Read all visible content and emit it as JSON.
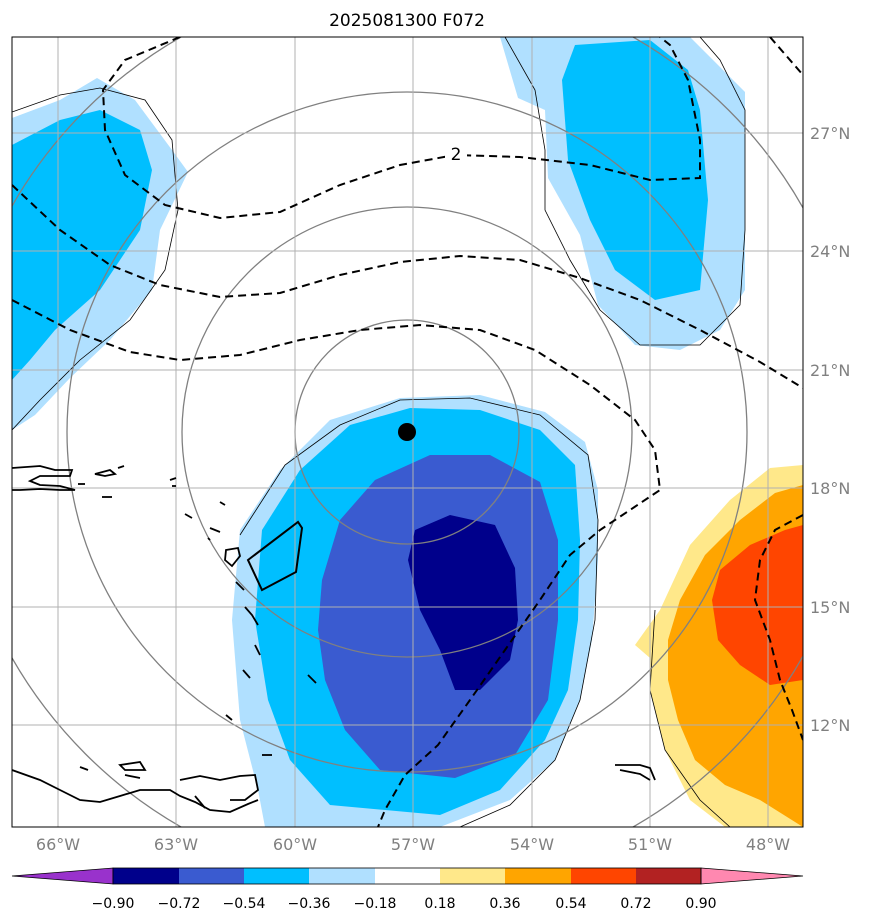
{
  "title": "2025081300 F072",
  "map": {
    "lon_ticks": [
      "66°W",
      "63°W",
      "60°W",
      "57°W",
      "54°W",
      "51°W",
      "48°W"
    ],
    "lat_ticks": [
      "27°N",
      "24°N",
      "21°N",
      "18°N",
      "15°N",
      "12°N"
    ],
    "contour_label": "2",
    "storm_marker": {
      "lon": -57.1,
      "lat": 19.4
    },
    "fill_colors": {
      "-0.90_-0.72": "#00008b",
      "-0.72_-0.54": "#3a5bd0",
      "-0.54_-0.36": "#00bfff",
      "-0.36_-0.18": "#b0e0ff",
      "0.18_0.36": "#ffe88a",
      "0.36_0.54": "#ffa500",
      "0.54_0.72": "#ff4500"
    }
  },
  "colorbar": {
    "tick_labels": [
      "−0.90",
      "−0.72",
      "−0.54",
      "−0.36",
      "−0.18",
      "0.18",
      "0.36",
      "0.54",
      "0.72",
      "0.90"
    ],
    "colors": [
      "#9932cc",
      "#00008b",
      "#3a5bd0",
      "#00bfff",
      "#b0e0ff",
      "#ffffff",
      "#ffe88a",
      "#ffa500",
      "#ff4500",
      "#b22222",
      "#ff88b0"
    ]
  }
}
